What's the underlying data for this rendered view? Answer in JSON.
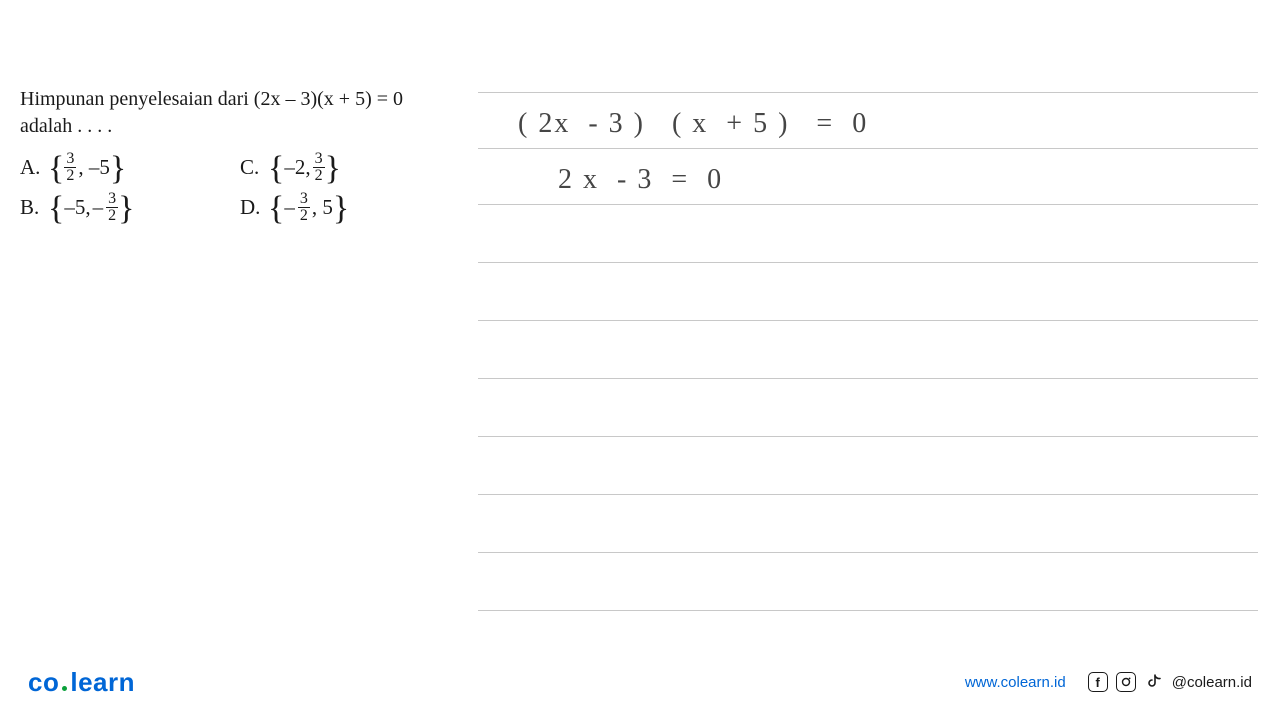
{
  "question": {
    "line1": "Himpunan penyelesaian dari (2x – 3)(x + 5) = 0",
    "line2": "adalah . . . .",
    "options": {
      "a": {
        "label": "A.",
        "prefix": "",
        "n1_num": "3",
        "n1_den": "2",
        "mid": ", –5"
      },
      "b": {
        "label": "B.",
        "prefix": "–5, ",
        "n2_neg": "–",
        "n2_num": "3",
        "n2_den": "2"
      },
      "c": {
        "label": "C.",
        "prefix": "–2, ",
        "n3_num": "3",
        "n3_den": "2"
      },
      "d": {
        "label": "D.",
        "n4_neg": "–",
        "n4_num": "3",
        "n4_den": "2",
        "suffix": ", 5"
      }
    }
  },
  "handwriting": {
    "line1": "( 2x  - 3 )   ( x  + 5 )   =  0",
    "line2": "2 x  - 3  =  0"
  },
  "writing_area": {
    "line_color": "#c8c8c8",
    "line_positions": [
      6,
      62,
      118,
      176,
      234,
      292,
      350,
      408,
      466,
      524
    ]
  },
  "footer": {
    "logo_co": "co",
    "logo_learn": "learn",
    "website": "www.colearn.id",
    "handle": "@colearn.id"
  },
  "colors": {
    "text": "#1a1a1a",
    "accent": "#0066d6",
    "handwriting": "#454545",
    "background": "#ffffff"
  }
}
